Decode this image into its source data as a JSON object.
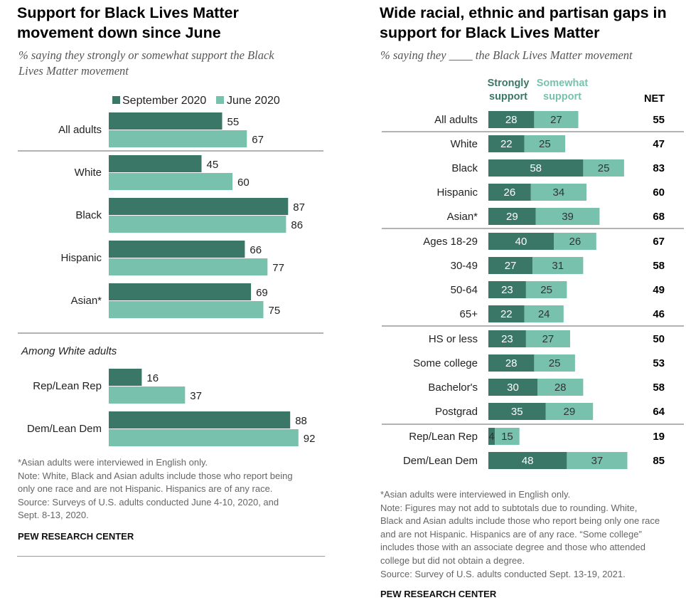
{
  "colors": {
    "strong": "#3a7766",
    "light": "#78c2ad",
    "rule": "#999999",
    "text": "#222222"
  },
  "left": {
    "title": [
      "Support for Black Lives Matter",
      "movement down since June"
    ],
    "subtitle": [
      "% saying they strongly or somewhat support the Black",
      "Lives Matter movement"
    ],
    "section_label": "Among White adults",
    "notes": [
      "*Asian adults were interviewed in English only.",
      "Note: White, Black and Asian adults include those who report being",
      "only one race and are not Hispanic. Hispanics are of any race.",
      "Source: Surveys of U.S. adults conducted June 4-10, 2020, and",
      "Sept. 8-13, 2020."
    ],
    "brand": "PEW RESEARCH CENTER"
  },
  "right": {
    "title": [
      "Wide racial, ethnic and partisan gaps in",
      "support for Black Lives Matter"
    ],
    "subtitle": "% saying they ____ the Black Lives Matter movement",
    "notes": [
      "*Asian adults were interviewed in English only.",
      "Note: Figures may not add to subtotals due to rounding. White,",
      "Black and Asian adults include those who report being only one race",
      "and are not Hispanic. Hispanics are of any race. “Some college”",
      "includes those with an associate degree and those who attended",
      "college but did not obtain a degree.",
      "Source: Survey of U.S. adults conducted Sept. 13-19, 2021."
    ],
    "brand": "PEW RESEARCH CENTER"
  },
  "chart_data": [
    {
      "type": "bar",
      "orientation": "horizontal",
      "title": "Support for Black Lives Matter movement down since June",
      "subtitle": "% saying they strongly or somewhat support the Black Lives Matter movement",
      "legend": [
        "September 2020",
        "June 2020"
      ],
      "categories": [
        "All adults",
        "White",
        "Black",
        "Hispanic",
        "Asian*",
        "Rep/Lean Rep",
        "Dem/Lean Dem"
      ],
      "series": [
        {
          "name": "September 2020",
          "values": [
            55,
            45,
            87,
            66,
            69,
            16,
            88
          ]
        },
        {
          "name": "June 2020",
          "values": [
            67,
            60,
            86,
            77,
            75,
            37,
            92
          ]
        }
      ],
      "xlim": [
        0,
        100
      ]
    },
    {
      "type": "bar",
      "orientation": "horizontal",
      "stacked": true,
      "title": "Wide racial, ethnic and partisan gaps in support for Black Lives Matter",
      "subtitle": "% saying they ____ the Black Lives Matter movement",
      "legend": [
        "Strongly support",
        "Somewhat support"
      ],
      "net_label": "NET",
      "categories": [
        "All adults",
        "White",
        "Black",
        "Hispanic",
        "Asian*",
        "Ages 18-29",
        "30-49",
        "50-64",
        "65+",
        "HS or less",
        "Some college",
        "Bachelor's",
        "Postgrad",
        "Rep/Lean Rep",
        "Dem/Lean Dem"
      ],
      "series": [
        {
          "name": "Strongly support",
          "values": [
            28,
            22,
            58,
            26,
            29,
            40,
            27,
            23,
            22,
            23,
            28,
            30,
            35,
            4,
            48
          ]
        },
        {
          "name": "Somewhat support",
          "values": [
            27,
            25,
            25,
            34,
            39,
            26,
            31,
            25,
            24,
            27,
            25,
            28,
            29,
            15,
            37
          ]
        }
      ],
      "net": [
        55,
        47,
        83,
        60,
        68,
        67,
        58,
        49,
        46,
        50,
        53,
        58,
        64,
        19,
        85
      ],
      "xlim": [
        0,
        100
      ]
    }
  ]
}
